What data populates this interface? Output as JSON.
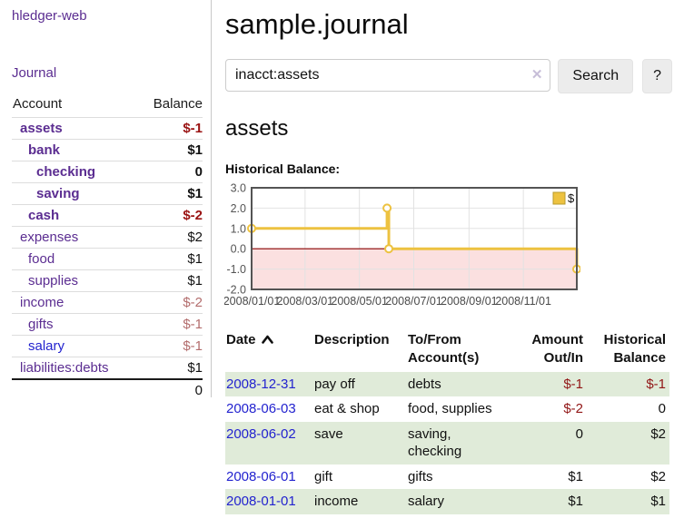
{
  "colors": {
    "link_purple": "#5b2d91",
    "link_blue": "#2323cf",
    "negative_strong": "#9a1313",
    "negative_soft": "#b36d6d",
    "stripe_green": "#e0ebd9",
    "series_gold": "#edc240",
    "zero_line_red": "#8b0000",
    "negative_region_pink": "#fbe0e0"
  },
  "sidebar": {
    "brand": "hledger-web",
    "nav_journal": "Journal",
    "accounts_table": {
      "headers": {
        "account": "Account",
        "balance": "Balance"
      },
      "rows": [
        {
          "account": "assets",
          "depth": 1,
          "bold": true,
          "link_color": "purple",
          "balance": "$-1",
          "balance_style": "neg-strong"
        },
        {
          "account": "bank",
          "depth": 2,
          "bold": true,
          "link_color": "purple",
          "balance": "$1",
          "balance_style": "pos"
        },
        {
          "account": "checking",
          "depth": 3,
          "bold": true,
          "link_color": "purple",
          "balance": "0",
          "balance_style": "pos"
        },
        {
          "account": "saving",
          "depth": 3,
          "bold": true,
          "link_color": "purple",
          "balance": "$1",
          "balance_style": "pos"
        },
        {
          "account": "cash",
          "depth": 2,
          "bold": true,
          "link_color": "purple",
          "balance": "$-2",
          "balance_style": "neg-strong"
        },
        {
          "account": "expenses",
          "depth": 1,
          "bold": false,
          "link_color": "purple",
          "balance": "$2",
          "balance_style": "pos"
        },
        {
          "account": "food",
          "depth": 2,
          "bold": false,
          "link_color": "purple",
          "balance": "$1",
          "balance_style": "pos"
        },
        {
          "account": "supplies",
          "depth": 2,
          "bold": false,
          "link_color": "purple",
          "balance": "$1",
          "balance_style": "pos"
        },
        {
          "account": "income",
          "depth": 1,
          "bold": false,
          "link_color": "purple",
          "balance": "$-2",
          "balance_style": "neg-soft"
        },
        {
          "account": "gifts",
          "depth": 2,
          "bold": false,
          "link_color": "purple",
          "balance": "$-1",
          "balance_style": "neg-soft"
        },
        {
          "account": "salary",
          "depth": 2,
          "bold": false,
          "link_color": "blue",
          "balance": "$-1",
          "balance_style": "neg-soft"
        },
        {
          "account": "liabilities:debts",
          "depth": 1,
          "bold": false,
          "link_color": "purple",
          "balance": "$1",
          "balance_style": "pos"
        }
      ],
      "total": "0"
    }
  },
  "header": {
    "title": "sample.journal"
  },
  "search": {
    "value": "inacct:assets",
    "clear_icon": "✕",
    "search_button": "Search",
    "help_button": "?"
  },
  "account_page": {
    "heading": "assets",
    "chart_title": "Historical Balance:"
  },
  "chart_data": {
    "type": "line",
    "step": true,
    "title": "Historical Balance:",
    "series": [
      {
        "name": "$",
        "color": "#edc240",
        "points": [
          [
            "2008-01-01",
            1
          ],
          [
            "2008-06-01",
            2
          ],
          [
            "2008-06-03",
            0
          ],
          [
            "2008-12-31",
            -1
          ]
        ]
      }
    ],
    "x_range": [
      "2008-01-01",
      "2008-12-31"
    ],
    "y_range": [
      -2,
      3
    ],
    "y_ticks": [
      3,
      2,
      1,
      0,
      -1,
      -2
    ],
    "y_tick_labels": [
      "3.0",
      "2.0",
      "1.0",
      "0.0",
      "-1.0",
      "-2.0"
    ],
    "x_ticks": [
      "2008-01-01",
      "2008-03-01",
      "2008-05-01",
      "2008-07-01",
      "2008-09-01",
      "2008-11-01"
    ],
    "x_tick_labels": [
      "2008/01/01",
      "2008/03/01",
      "2008/05/01",
      "2008/07/01",
      "2008/09/01",
      "2008/11/01"
    ],
    "legend_position": "top-right",
    "grid": true,
    "grid_color": "#e2e2e2",
    "border_color": "#545454",
    "zero_line_color": "#8b0000",
    "negative_region_fill": "#fbe0e0"
  },
  "register": {
    "headers": {
      "date": "Date",
      "description": "Description",
      "accounts": "To/From\nAccount(s)",
      "amount": "Amount\nOut/In",
      "balance": "Historical\nBalance"
    },
    "rows": [
      {
        "date": "2008-12-31",
        "description": "pay off",
        "accounts": "debts",
        "amount": "$-1",
        "amount_negative": true,
        "balance": "$-1",
        "balance_negative": true
      },
      {
        "date": "2008-06-03",
        "description": "eat & shop",
        "accounts": "food, supplies",
        "amount": "$-2",
        "amount_negative": true,
        "balance": "0",
        "balance_negative": false
      },
      {
        "date": "2008-06-02",
        "description": "save",
        "accounts": "saving,\nchecking",
        "amount": "0",
        "amount_negative": false,
        "balance": "$2",
        "balance_negative": false
      },
      {
        "date": "2008-06-01",
        "description": "gift",
        "accounts": "gifts",
        "amount": "$1",
        "amount_negative": false,
        "balance": "$2",
        "balance_negative": false
      },
      {
        "date": "2008-01-01",
        "description": "income",
        "accounts": "salary",
        "amount": "$1",
        "amount_negative": false,
        "balance": "$1",
        "balance_negative": false
      }
    ]
  }
}
